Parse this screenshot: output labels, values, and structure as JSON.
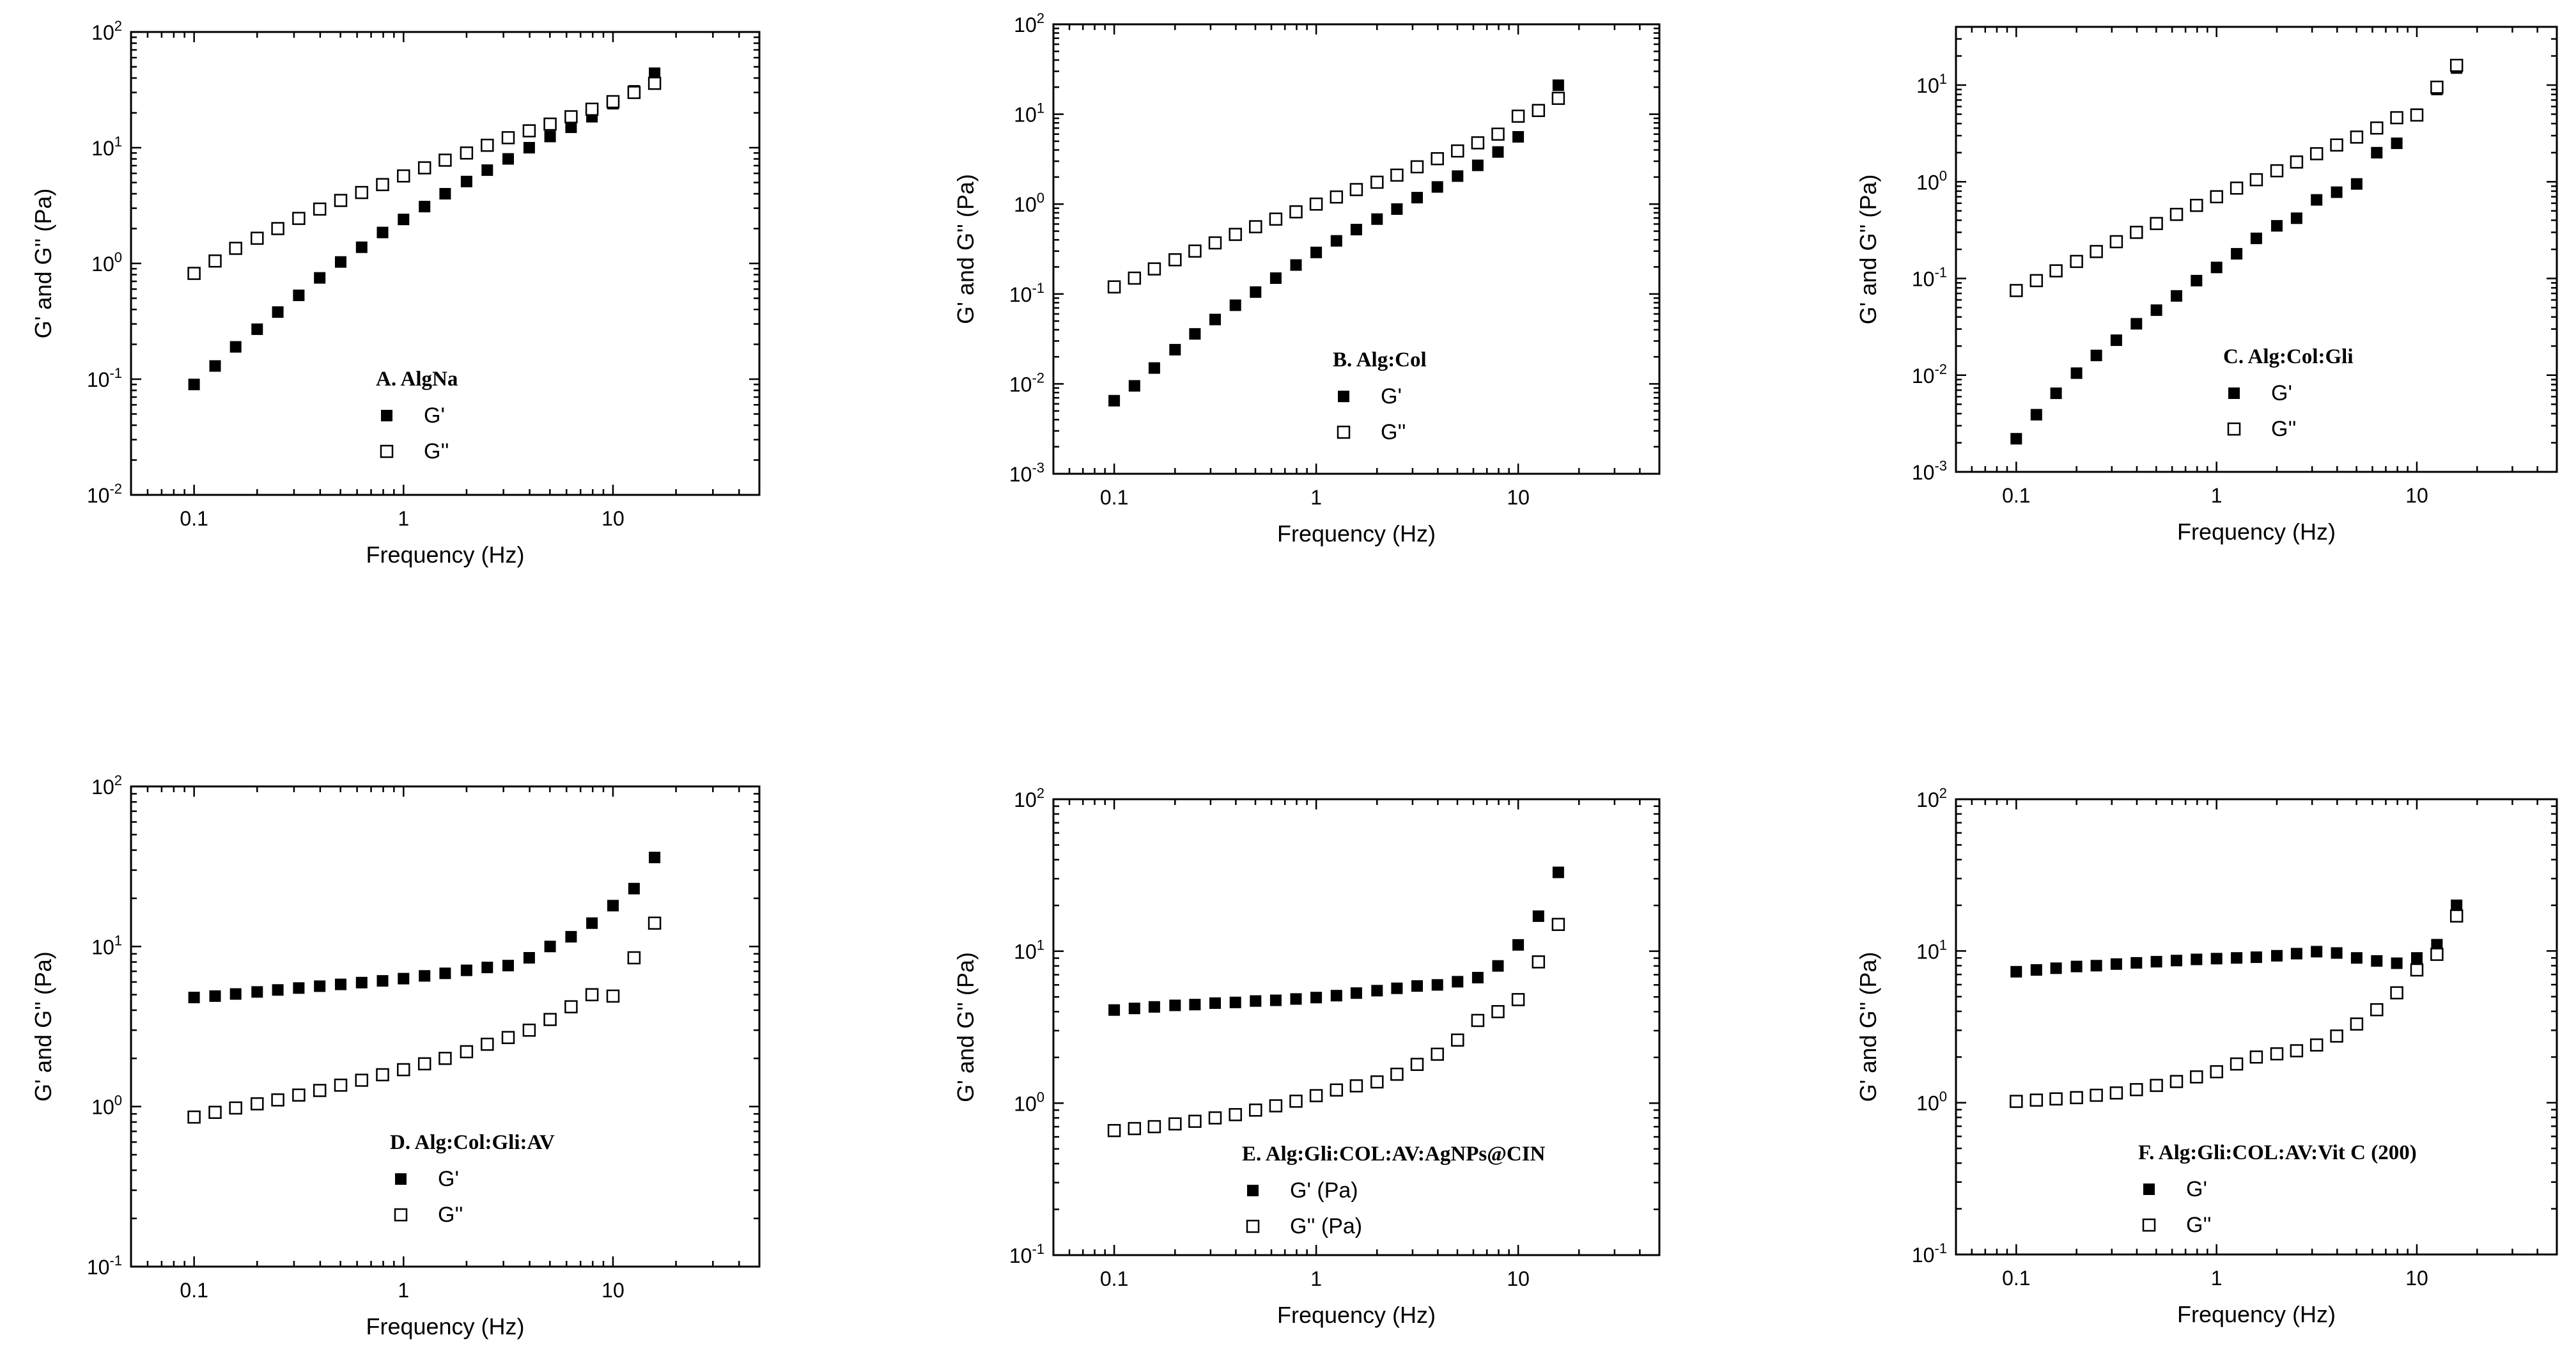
{
  "chart_data": [
    {
      "type": "scatter",
      "title": "A. AlgNa",
      "xlabel": "Frequency (Hz)",
      "ylabel": "G' and G'' (Pa)",
      "xscale": "log",
      "yscale": "log",
      "xlim": [
        0.05,
        50
      ],
      "ylim": [
        0.01,
        100
      ],
      "xticks": [
        "0.1",
        "1",
        "10"
      ],
      "yticks": [
        "10^-2",
        "10^-1",
        "10^0",
        "10^1",
        "10^2"
      ],
      "legend_position": "lower-center",
      "series": [
        {
          "name": "G'",
          "marker": "filled-square",
          "x": [
            0.1,
            0.126,
            0.158,
            0.2,
            0.251,
            0.316,
            0.398,
            0.501,
            0.631,
            0.794,
            1.0,
            1.26,
            1.58,
            2.0,
            2.51,
            3.16,
            3.98,
            5.01,
            6.31,
            7.94,
            10.0,
            12.6,
            15.8
          ],
          "y": [
            0.09,
            0.13,
            0.19,
            0.27,
            0.38,
            0.53,
            0.75,
            1.03,
            1.38,
            1.85,
            2.4,
            3.1,
            4.0,
            5.1,
            6.4,
            8.0,
            10.0,
            12.5,
            15.0,
            18.5,
            24,
            31,
            44
          ]
        },
        {
          "name": "G''",
          "marker": "open-square",
          "x": [
            0.1,
            0.126,
            0.158,
            0.2,
            0.251,
            0.316,
            0.398,
            0.501,
            0.631,
            0.794,
            1.0,
            1.26,
            1.58,
            2.0,
            2.51,
            3.16,
            3.98,
            5.01,
            6.31,
            7.94,
            10.0,
            12.6,
            15.8
          ],
          "y": [
            0.82,
            1.05,
            1.35,
            1.65,
            2.0,
            2.45,
            2.95,
            3.5,
            4.1,
            4.8,
            5.7,
            6.7,
            7.8,
            9.0,
            10.5,
            12.2,
            14.0,
            16.0,
            18.5,
            21.5,
            25,
            30,
            36
          ]
        }
      ]
    },
    {
      "type": "scatter",
      "title": "B. Alg:Col",
      "xlabel": "Frequency (Hz)",
      "ylabel": "G' and G'' (Pa)",
      "xscale": "log",
      "yscale": "log",
      "xlim": [
        0.05,
        50
      ],
      "ylim": [
        0.001,
        100
      ],
      "xticks": [
        "0.1",
        "1",
        "10"
      ],
      "yticks": [
        "10^-3",
        "10^-2",
        "10^-1",
        "10^0",
        "10^1",
        "10^2"
      ],
      "legend_position": "lower-center",
      "series": [
        {
          "name": "G'",
          "marker": "filled-square",
          "x": [
            0.1,
            0.126,
            0.158,
            0.2,
            0.251,
            0.316,
            0.398,
            0.501,
            0.631,
            0.794,
            1.0,
            1.26,
            1.58,
            2.0,
            2.51,
            3.16,
            3.98,
            5.01,
            6.31,
            7.94,
            10.0,
            15.8
          ],
          "y": [
            0.0065,
            0.0095,
            0.015,
            0.024,
            0.036,
            0.052,
            0.075,
            0.105,
            0.15,
            0.21,
            0.29,
            0.39,
            0.52,
            0.68,
            0.88,
            1.18,
            1.55,
            2.05,
            2.7,
            3.8,
            5.6,
            21
          ]
        },
        {
          "name": "G''",
          "marker": "open-square",
          "x": [
            0.1,
            0.126,
            0.158,
            0.2,
            0.251,
            0.316,
            0.398,
            0.501,
            0.631,
            0.794,
            1.0,
            1.26,
            1.58,
            2.0,
            2.51,
            3.16,
            3.98,
            5.01,
            6.31,
            7.94,
            10.0,
            12.6,
            15.8
          ],
          "y": [
            0.12,
            0.15,
            0.19,
            0.24,
            0.3,
            0.37,
            0.46,
            0.56,
            0.68,
            0.82,
            1.0,
            1.2,
            1.45,
            1.75,
            2.1,
            2.6,
            3.2,
            3.9,
            4.8,
            6.0,
            9.5,
            11,
            15
          ]
        }
      ]
    },
    {
      "type": "scatter",
      "title": "C. Alg:Col:Gli",
      "xlabel": "Frequency (Hz)",
      "ylabel": "G' and G'' (Pa)",
      "xscale": "log",
      "yscale": "log",
      "xlim": [
        0.05,
        50
      ],
      "ylim": [
        0.001,
        40
      ],
      "xticks": [
        "0.1",
        "1",
        "10"
      ],
      "yticks": [
        "10^-3",
        "10^-2",
        "10^-1",
        "10^0",
        "10^1"
      ],
      "legend_position": "lower-center",
      "series": [
        {
          "name": "G'",
          "marker": "filled-square",
          "x": [
            0.1,
            0.126,
            0.158,
            0.2,
            0.251,
            0.316,
            0.398,
            0.501,
            0.631,
            0.794,
            1.0,
            1.26,
            1.58,
            2.0,
            2.51,
            3.16,
            3.98,
            5.01,
            6.31,
            7.94,
            10.0,
            12.6,
            15.8
          ],
          "y": [
            0.0022,
            0.0039,
            0.0065,
            0.0105,
            0.016,
            0.023,
            0.034,
            0.047,
            0.066,
            0.095,
            0.13,
            0.18,
            0.26,
            0.35,
            0.42,
            0.65,
            0.78,
            0.95,
            2.0,
            2.5,
            5.0,
            9.0,
            15
          ]
        },
        {
          "name": "G''",
          "marker": "open-square",
          "x": [
            0.1,
            0.126,
            0.158,
            0.2,
            0.251,
            0.316,
            0.398,
            0.501,
            0.631,
            0.794,
            1.0,
            1.26,
            1.58,
            2.0,
            2.51,
            3.16,
            3.98,
            5.01,
            6.31,
            7.94,
            10.0,
            12.6,
            15.8
          ],
          "y": [
            0.075,
            0.095,
            0.12,
            0.15,
            0.19,
            0.24,
            0.3,
            0.37,
            0.46,
            0.57,
            0.7,
            0.86,
            1.05,
            1.3,
            1.6,
            1.95,
            2.4,
            2.9,
            3.6,
            4.6,
            4.9,
            9.5,
            16
          ]
        }
      ]
    },
    {
      "type": "scatter",
      "title": "D. Alg:Col:Gli:AV",
      "xlabel": "Frequency (Hz)",
      "ylabel": "G' and G'' (Pa)",
      "xscale": "log",
      "yscale": "log",
      "xlim": [
        0.05,
        50
      ],
      "ylim": [
        0.1,
        100
      ],
      "xticks": [
        "0.1",
        "1",
        "10"
      ],
      "yticks": [
        "10^-1",
        "10^0",
        "10^1",
        "10^2"
      ],
      "legend_position": "lower-center",
      "series": [
        {
          "name": "G'",
          "marker": "filled-square",
          "x": [
            0.1,
            0.126,
            0.158,
            0.2,
            0.251,
            0.316,
            0.398,
            0.501,
            0.631,
            0.794,
            1.0,
            1.26,
            1.58,
            2.0,
            2.51,
            3.16,
            3.98,
            5.01,
            6.31,
            7.94,
            10.0,
            12.6,
            15.8
          ],
          "y": [
            4.8,
            4.9,
            5.05,
            5.2,
            5.35,
            5.5,
            5.65,
            5.8,
            5.95,
            6.1,
            6.3,
            6.55,
            6.8,
            7.1,
            7.4,
            7.6,
            8.5,
            10,
            11.5,
            14,
            18,
            23,
            36
          ]
        },
        {
          "name": "G''",
          "marker": "open-square",
          "x": [
            0.1,
            0.126,
            0.158,
            0.2,
            0.251,
            0.316,
            0.398,
            0.501,
            0.631,
            0.794,
            1.0,
            1.26,
            1.58,
            2.0,
            2.51,
            3.16,
            3.98,
            5.01,
            6.31,
            7.94,
            10.0,
            12.6,
            15.8
          ],
          "y": [
            0.86,
            0.92,
            0.98,
            1.04,
            1.1,
            1.18,
            1.26,
            1.36,
            1.46,
            1.58,
            1.7,
            1.85,
            2.0,
            2.2,
            2.45,
            2.7,
            3.0,
            3.5,
            4.2,
            5.0,
            4.9,
            8.5,
            14
          ]
        }
      ]
    },
    {
      "type": "scatter",
      "title": "E. Alg:Gli:COL:AV:AgNPs@CIN",
      "xlabel": "Frequency (Hz)",
      "ylabel": "G' and G'' (Pa)",
      "xscale": "log",
      "yscale": "log",
      "xlim": [
        0.05,
        50
      ],
      "ylim": [
        0.1,
        100
      ],
      "xticks": [
        "0.1",
        "1",
        "10"
      ],
      "yticks": [
        "10^-1",
        "10^0",
        "10^1",
        "10^2"
      ],
      "legend_position": "lower-center",
      "series": [
        {
          "name": "G' (Pa)",
          "marker": "filled-square",
          "x": [
            0.1,
            0.126,
            0.158,
            0.2,
            0.251,
            0.316,
            0.398,
            0.501,
            0.631,
            0.794,
            1.0,
            1.26,
            1.58,
            2.0,
            2.51,
            3.16,
            3.98,
            5.01,
            6.31,
            7.94,
            10.0,
            12.6,
            15.8
          ],
          "y": [
            4.1,
            4.2,
            4.3,
            4.4,
            4.45,
            4.55,
            4.6,
            4.7,
            4.75,
            4.85,
            4.95,
            5.1,
            5.3,
            5.5,
            5.7,
            5.9,
            6.0,
            6.3,
            6.7,
            8.0,
            11,
            17,
            33
          ]
        },
        {
          "name": "G'' (Pa)",
          "marker": "open-square",
          "x": [
            0.1,
            0.126,
            0.158,
            0.2,
            0.251,
            0.316,
            0.398,
            0.501,
            0.631,
            0.794,
            1.0,
            1.26,
            1.58,
            2.0,
            2.51,
            3.16,
            3.98,
            5.01,
            6.31,
            7.94,
            10.0,
            12.6,
            15.8
          ],
          "y": [
            0.66,
            0.68,
            0.7,
            0.73,
            0.76,
            0.8,
            0.84,
            0.9,
            0.96,
            1.03,
            1.12,
            1.22,
            1.3,
            1.38,
            1.55,
            1.8,
            2.1,
            2.6,
            3.5,
            4.0,
            4.8,
            8.5,
            15
          ]
        }
      ]
    },
    {
      "type": "scatter",
      "title": "F. Alg:Gli:COL:AV:Vit C (200)",
      "xlabel": "Frequency (Hz)",
      "ylabel": "G' and G'' (Pa)",
      "xscale": "log",
      "yscale": "log",
      "xlim": [
        0.05,
        50
      ],
      "ylim": [
        0.1,
        100
      ],
      "xticks": [
        "0.1",
        "1",
        "10"
      ],
      "yticks": [
        "10^-1",
        "10^0",
        "10^1",
        "10^2"
      ],
      "legend_position": "lower-right",
      "series": [
        {
          "name": "G'",
          "marker": "filled-square",
          "x": [
            0.1,
            0.126,
            0.158,
            0.2,
            0.251,
            0.316,
            0.398,
            0.501,
            0.631,
            0.794,
            1.0,
            1.26,
            1.58,
            2.0,
            2.51,
            3.16,
            3.98,
            5.01,
            6.31,
            7.94,
            10.0,
            12.6,
            15.8
          ],
          "y": [
            7.3,
            7.5,
            7.7,
            7.9,
            8.0,
            8.2,
            8.35,
            8.5,
            8.65,
            8.8,
            8.9,
            9.0,
            9.1,
            9.3,
            9.6,
            9.9,
            9.7,
            9.0,
            8.6,
            8.3,
            9.0,
            11,
            20
          ]
        },
        {
          "name": "G''",
          "marker": "open-square",
          "x": [
            0.1,
            0.126,
            0.158,
            0.2,
            0.251,
            0.316,
            0.398,
            0.501,
            0.631,
            0.794,
            1.0,
            1.26,
            1.58,
            2.0,
            2.51,
            3.16,
            3.98,
            5.01,
            6.31,
            7.94,
            10.0,
            12.6,
            15.8
          ],
          "y": [
            1.02,
            1.04,
            1.06,
            1.08,
            1.12,
            1.16,
            1.22,
            1.3,
            1.38,
            1.48,
            1.6,
            1.8,
            2.0,
            2.1,
            2.2,
            2.4,
            2.75,
            3.3,
            4.1,
            5.3,
            7.5,
            9.5,
            17
          ]
        }
      ]
    }
  ]
}
